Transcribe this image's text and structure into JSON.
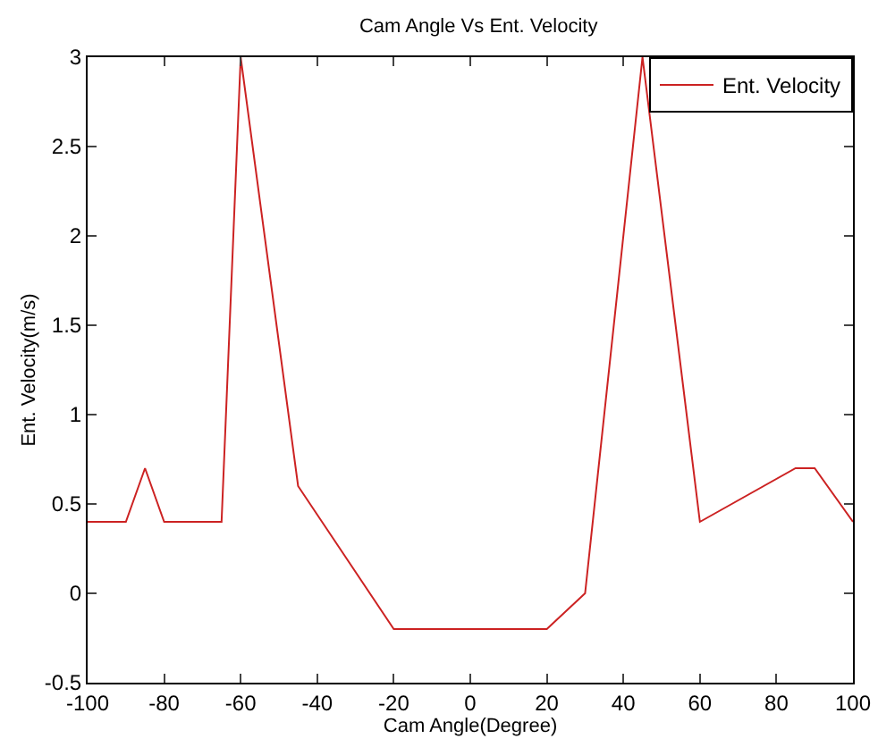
{
  "chart_data": {
    "type": "line",
    "title": "Cam Angle Vs Ent. Velocity",
    "xlabel": "Cam Angle(Degree)",
    "ylabel": "Ent. Velocity(m/s)",
    "x": [
      -100,
      -90,
      -85,
      -80,
      -65,
      -60,
      -45,
      -20,
      20,
      30,
      45,
      60,
      85,
      90,
      100
    ],
    "series": [
      {
        "name": "Ent. Velocity",
        "color": "#cc2222",
        "values": [
          0.4,
          0.4,
          0.7,
          0.4,
          0.4,
          3,
          0.6,
          -0.2,
          -0.2,
          0,
          3,
          0.4,
          0.7,
          0.7,
          0.4
        ]
      }
    ],
    "xlim": [
      -100,
      100
    ],
    "xticks": [
      -100,
      -80,
      -60,
      -40,
      -20,
      0,
      20,
      40,
      60,
      80,
      100
    ],
    "ylim": [
      -0.5,
      3
    ],
    "yticks": [
      -0.5,
      0,
      0.5,
      1,
      1.5,
      2,
      2.5,
      3
    ],
    "grid": false,
    "legend": "top right",
    "marker": "none",
    "line_style": "solid"
  }
}
